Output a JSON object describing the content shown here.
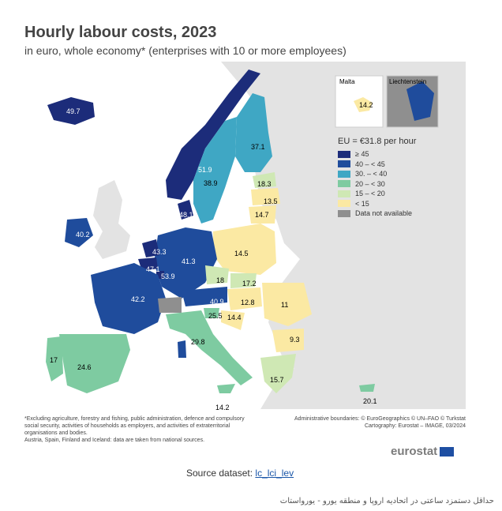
{
  "title": "Hourly labour costs, 2023",
  "subtitle": "in euro, whole economy* (enterprises with 10 or more employees)",
  "legend": {
    "title": "EU = €31.8 per hour",
    "items": [
      {
        "label": "≥ 45",
        "color": "#1c2c7a"
      },
      {
        "label": "40 – < 45",
        "color": "#1f4c9c"
      },
      {
        "label": "30. – < 40",
        "color": "#3fa7c4"
      },
      {
        "label": "20 – < 30",
        "color": "#7ecba1"
      },
      {
        "label": "15 – < 20",
        "color": "#cfe8b4"
      },
      {
        "label": "< 15",
        "color": "#fbe9a3"
      },
      {
        "label": "Data not available",
        "color": "#8f8f8f"
      }
    ]
  },
  "insets": {
    "malta": {
      "label": "Malta",
      "value": "14.2"
    },
    "liechtenstein": {
      "label": "Liechtenstein"
    }
  },
  "country_values": {
    "iceland": "49.7",
    "norway": "51.9",
    "sweden": "38.9",
    "finland": "37.1",
    "estonia": "18.3",
    "latvia": "13.5",
    "lithuania": "14.7",
    "ireland": "40.2",
    "denmark": "48.1",
    "netherlands": "43.3",
    "belgium": "47.1",
    "luxembourg": "53.9",
    "germany": "41.3",
    "poland": "14.5",
    "czechia": "18",
    "slovakia": "17.2",
    "france": "42.2",
    "austria": "40.9",
    "hungary": "12.8",
    "romania": "11",
    "slovenia": "25.5",
    "croatia": "14.4",
    "bulgaria": "9.3",
    "italy": "29.8",
    "portugal": "17",
    "spain": "24.6",
    "greece": "15.7",
    "cyprus": "20.1",
    "malta": "14.2"
  },
  "footnote": "*Excluding agriculture, forestry and fishing, public administration, defence and compulsory social security, activities of households as employers, and activities of extraterritorial organisations and bodies.\nAustria, Spain, Finland and Iceland: data are taken from national sources.",
  "admin_line1": "Administrative boundaries: © EuroGeographics © UN–FAO © Turkstat",
  "admin_line2": "Cartography: Eurostat – IMAGE, 03/2024",
  "logo_text": "eurostat",
  "source_label": "Source dataset:",
  "source_link": "lc_lci_lev",
  "caption": "حداقل دستمزد ساعتی در اتحادیه اروپا و منطقه یورو - یورواستات"
}
